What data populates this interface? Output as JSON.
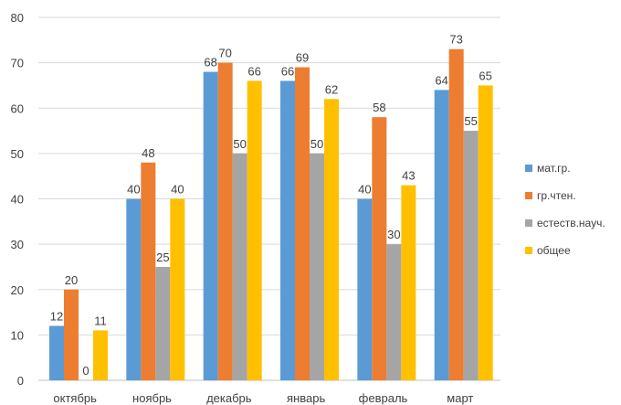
{
  "chart_data": {
    "type": "bar",
    "categories": [
      "октябрь",
      "ноябрь",
      "декабрь",
      "январь",
      "февраль",
      "март"
    ],
    "series": [
      {
        "name": "мат.гр.",
        "color": "#5b9bd5",
        "values": [
          12,
          40,
          68,
          66,
          40,
          64
        ]
      },
      {
        "name": "гр.чтен.",
        "color": "#ed7d31",
        "values": [
          20,
          48,
          70,
          69,
          58,
          73
        ]
      },
      {
        "name": "естеств.науч.",
        "color": "#a5a5a5",
        "values": [
          0,
          25,
          50,
          50,
          30,
          55
        ]
      },
      {
        "name": "общее",
        "color": "#ffc000",
        "values": [
          11,
          40,
          66,
          62,
          43,
          65
        ]
      }
    ],
    "ylim": [
      0,
      80
    ],
    "yticks": [
      0,
      10,
      20,
      30,
      40,
      50,
      60,
      70,
      80
    ],
    "grid": true,
    "legend": "right",
    "data_labels": true
  }
}
